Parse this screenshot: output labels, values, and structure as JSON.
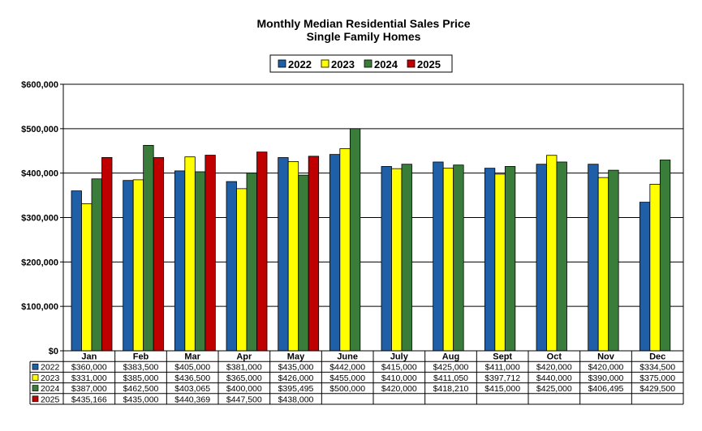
{
  "chart_data": {
    "type": "bar",
    "title": "Monthly Median Residential Sales Price",
    "subtitle": "Single Family Homes",
    "categories": [
      "Jan",
      "Feb",
      "Mar",
      "Apr",
      "May",
      "June",
      "July",
      "Aug",
      "Sept",
      "Oct",
      "Nov",
      "Dec"
    ],
    "series": [
      {
        "name": "2022",
        "color": "#1f5fa8",
        "values": [
          360000,
          383500,
          405000,
          381000,
          435000,
          442000,
          415000,
          425000,
          411000,
          420000,
          420000,
          334500
        ],
        "labels": [
          "$360,000",
          "$383,500",
          "$405,000",
          "$381,000",
          "$435,000",
          "$442,000",
          "$415,000",
          "$425,000",
          "$411,000",
          "$420,000",
          "$420,000",
          "$334,500"
        ]
      },
      {
        "name": "2023",
        "color": "#ffff00",
        "values": [
          331000,
          385000,
          436500,
          365000,
          426000,
          455000,
          410000,
          411050,
          397712,
          440000,
          390000,
          375000
        ],
        "labels": [
          "$331,000",
          "$385,000",
          "$436,500",
          "$365,000",
          "$426,000",
          "$455,000",
          "$410,000",
          "$411,050",
          "$397,712",
          "$440,000",
          "$390,000",
          "$375,000"
        ]
      },
      {
        "name": "2024",
        "color": "#3a7d3a",
        "values": [
          387000,
          462500,
          403065,
          400000,
          395495,
          500000,
          420000,
          418210,
          415000,
          425000,
          406495,
          429500
        ],
        "labels": [
          "$387,000",
          "$462,500",
          "$403,065",
          "$400,000",
          "$395,495",
          "$500,000",
          "$420,000",
          "$418,210",
          "$415,000",
          "$425,000",
          "$406,495",
          "$429,500"
        ]
      },
      {
        "name": "2025",
        "color": "#c00000",
        "values": [
          435166,
          435000,
          440369,
          447500,
          438000,
          null,
          null,
          null,
          null,
          null,
          null,
          null
        ],
        "labels": [
          "$435,166",
          "$435,000",
          "$440,369",
          "$447,500",
          "$438,000",
          "",
          "",
          "",
          "",
          "",
          "",
          ""
        ]
      }
    ],
    "yticks": [
      "$0",
      "$100,000",
      "$200,000",
      "$300,000",
      "$400,000",
      "$500,000",
      "$600,000"
    ],
    "ylim": [
      0,
      600000
    ],
    "grid": true,
    "legend": "top-center",
    "table": true
  }
}
